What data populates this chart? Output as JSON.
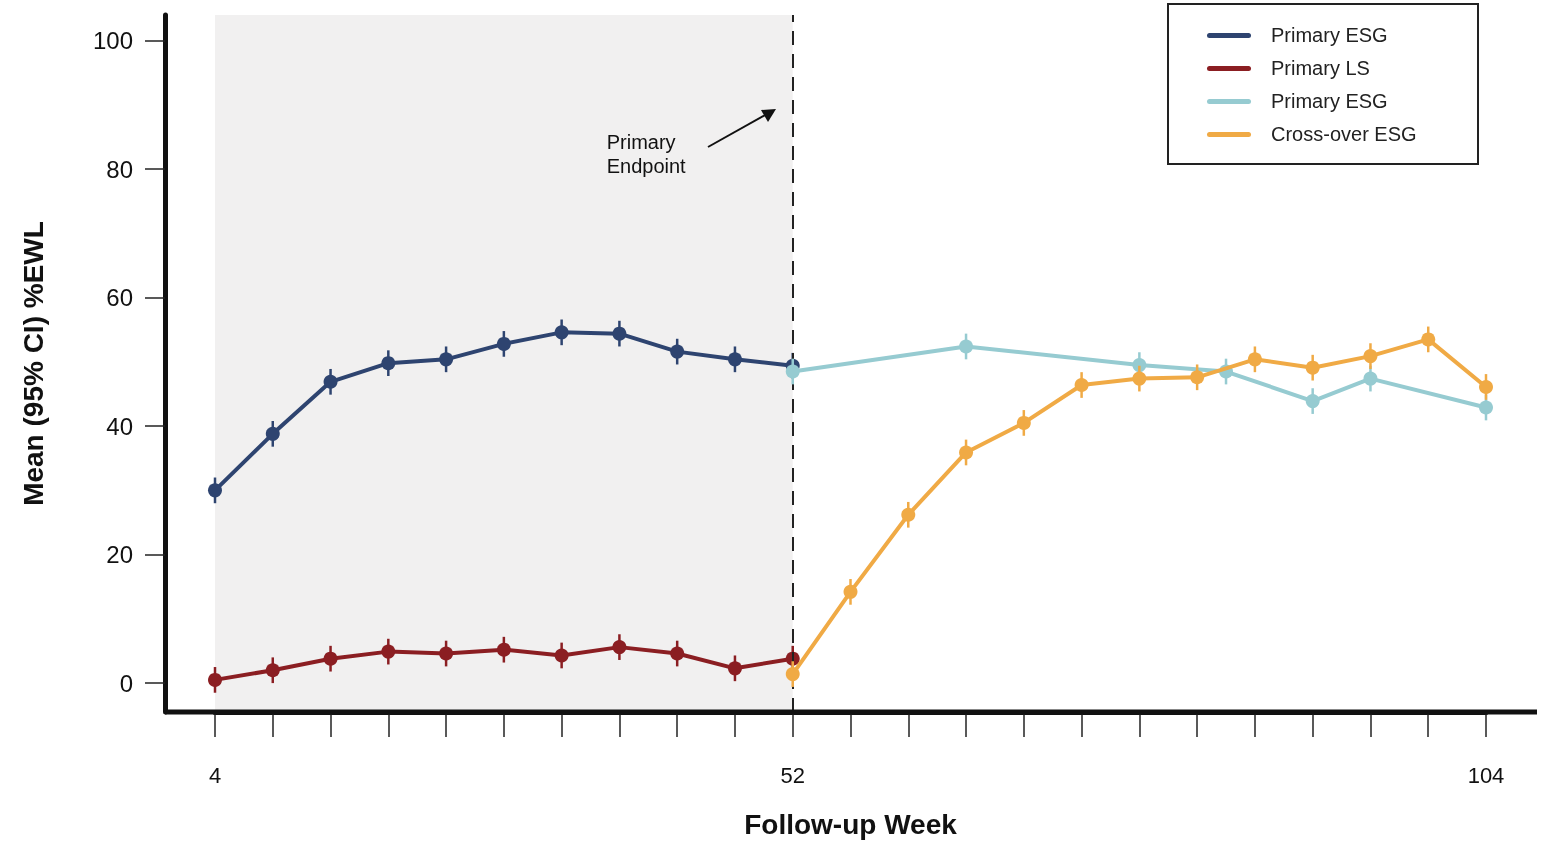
{
  "chart_data": {
    "type": "line",
    "xlabel": "Follow-up Week",
    "ylabel": "Mean (95% CI) %EWL",
    "categories": [
      "4",
      null,
      null,
      null,
      null,
      null,
      null,
      null,
      null,
      null,
      null,
      null,
      null,
      null,
      null,
      null,
      null,
      null,
      null,
      null,
      "52",
      null,
      null,
      null,
      null,
      null,
      null,
      null,
      null,
      null,
      null,
      null,
      null,
      null,
      null,
      null,
      null,
      null,
      null,
      null,
      null,
      null,
      null,
      null,
      "104"
    ],
    "series": [
      {
        "name": "Primary ESG",
        "color": "#2e4470",
        "values": [
          30.0,
          null,
          38.8,
          null,
          46.9,
          null,
          49.8,
          null,
          50.4,
          null,
          52.8,
          null,
          54.6,
          null,
          54.4,
          null,
          51.6,
          null,
          50.4,
          null,
          49.4,
          null,
          null,
          null,
          null,
          null,
          null,
          null,
          null,
          null,
          null,
          null,
          null,
          null,
          null,
          null,
          null,
          null,
          null,
          null,
          null,
          null,
          null,
          null,
          null
        ],
        "errors": [
          2,
          null,
          2,
          null,
          2,
          null,
          2,
          null,
          2,
          null,
          2,
          null,
          2,
          null,
          2,
          null,
          2,
          null,
          2,
          null,
          2,
          null,
          null,
          null,
          null,
          null,
          null,
          null,
          null,
          null,
          null,
          null,
          null,
          null,
          null,
          null,
          null,
          null,
          null,
          null,
          null,
          null,
          null,
          null,
          null
        ]
      },
      {
        "name": "Primary LS",
        "color": "#8b1e22",
        "values": [
          0.5,
          null,
          2.0,
          null,
          3.8,
          null,
          4.9,
          null,
          4.6,
          null,
          5.2,
          null,
          4.3,
          null,
          5.6,
          null,
          4.6,
          null,
          2.3,
          null,
          3.8,
          null,
          null,
          null,
          null,
          null,
          null,
          null,
          null,
          null,
          null,
          null,
          null,
          null,
          null,
          null,
          null,
          null,
          null,
          null,
          null,
          null,
          null,
          null,
          null
        ],
        "errors": [
          2,
          null,
          2,
          null,
          2,
          null,
          2,
          null,
          2,
          null,
          2,
          null,
          2,
          null,
          2,
          null,
          2,
          null,
          2,
          null,
          2,
          null,
          null,
          null,
          null,
          null,
          null,
          null,
          null,
          null,
          null,
          null,
          null,
          null,
          null,
          null,
          null,
          null,
          null,
          null,
          null,
          null,
          null,
          null,
          null
        ]
      },
      {
        "name": "Primary ESG",
        "color": "#96cbd1",
        "values": [
          null,
          null,
          null,
          null,
          null,
          null,
          null,
          null,
          null,
          null,
          null,
          null,
          null,
          null,
          null,
          null,
          null,
          null,
          null,
          null,
          48.5,
          null,
          null,
          null,
          null,
          null,
          52.4,
          null,
          null,
          null,
          null,
          null,
          49.5,
          null,
          null,
          48.5,
          null,
          null,
          43.9,
          null,
          47.4,
          null,
          null,
          null,
          42.9
        ],
        "errors": [
          null,
          null,
          null,
          null,
          null,
          null,
          null,
          null,
          null,
          null,
          null,
          null,
          null,
          null,
          null,
          null,
          null,
          null,
          null,
          null,
          2,
          null,
          null,
          null,
          null,
          null,
          2,
          null,
          null,
          null,
          null,
          null,
          2,
          null,
          null,
          2,
          null,
          null,
          2,
          null,
          2,
          null,
          null,
          null,
          2
        ]
      },
      {
        "name": "Cross-over ESG",
        "color": "#f0aa45",
        "values": [
          null,
          null,
          null,
          null,
          null,
          null,
          null,
          null,
          null,
          null,
          null,
          null,
          null,
          null,
          null,
          null,
          null,
          null,
          null,
          null,
          1.4,
          null,
          14.2,
          null,
          26.2,
          null,
          35.9,
          null,
          40.5,
          null,
          46.4,
          null,
          47.4,
          null,
          47.6,
          null,
          50.4,
          null,
          49.1,
          null,
          50.9,
          null,
          53.5,
          null,
          46.1
        ],
        "errors": [
          null,
          null,
          null,
          null,
          null,
          null,
          null,
          null,
          null,
          null,
          null,
          null,
          null,
          null,
          null,
          null,
          null,
          null,
          null,
          null,
          2,
          null,
          2,
          null,
          2,
          null,
          2,
          null,
          2,
          null,
          2,
          null,
          2,
          null,
          2,
          null,
          2,
          null,
          2,
          null,
          2,
          null,
          2,
          null,
          2
        ]
      }
    ],
    "ylim": [
      -4.5,
      104
    ],
    "yticks": [
      0,
      20,
      40,
      60,
      80,
      100
    ],
    "marker": "circle",
    "line_style": "solid",
    "grid": false,
    "legend": "top right",
    "ref_lines": [
      {
        "axis": "x",
        "value": "52",
        "color": "#222222",
        "line_style": "dashed"
      }
    ],
    "bands": [
      {
        "axis": "x",
        "from": "4",
        "to": "52",
        "color": "#f1f0f0"
      }
    ],
    "annotations": [
      "Primary Endpoint"
    ]
  }
}
